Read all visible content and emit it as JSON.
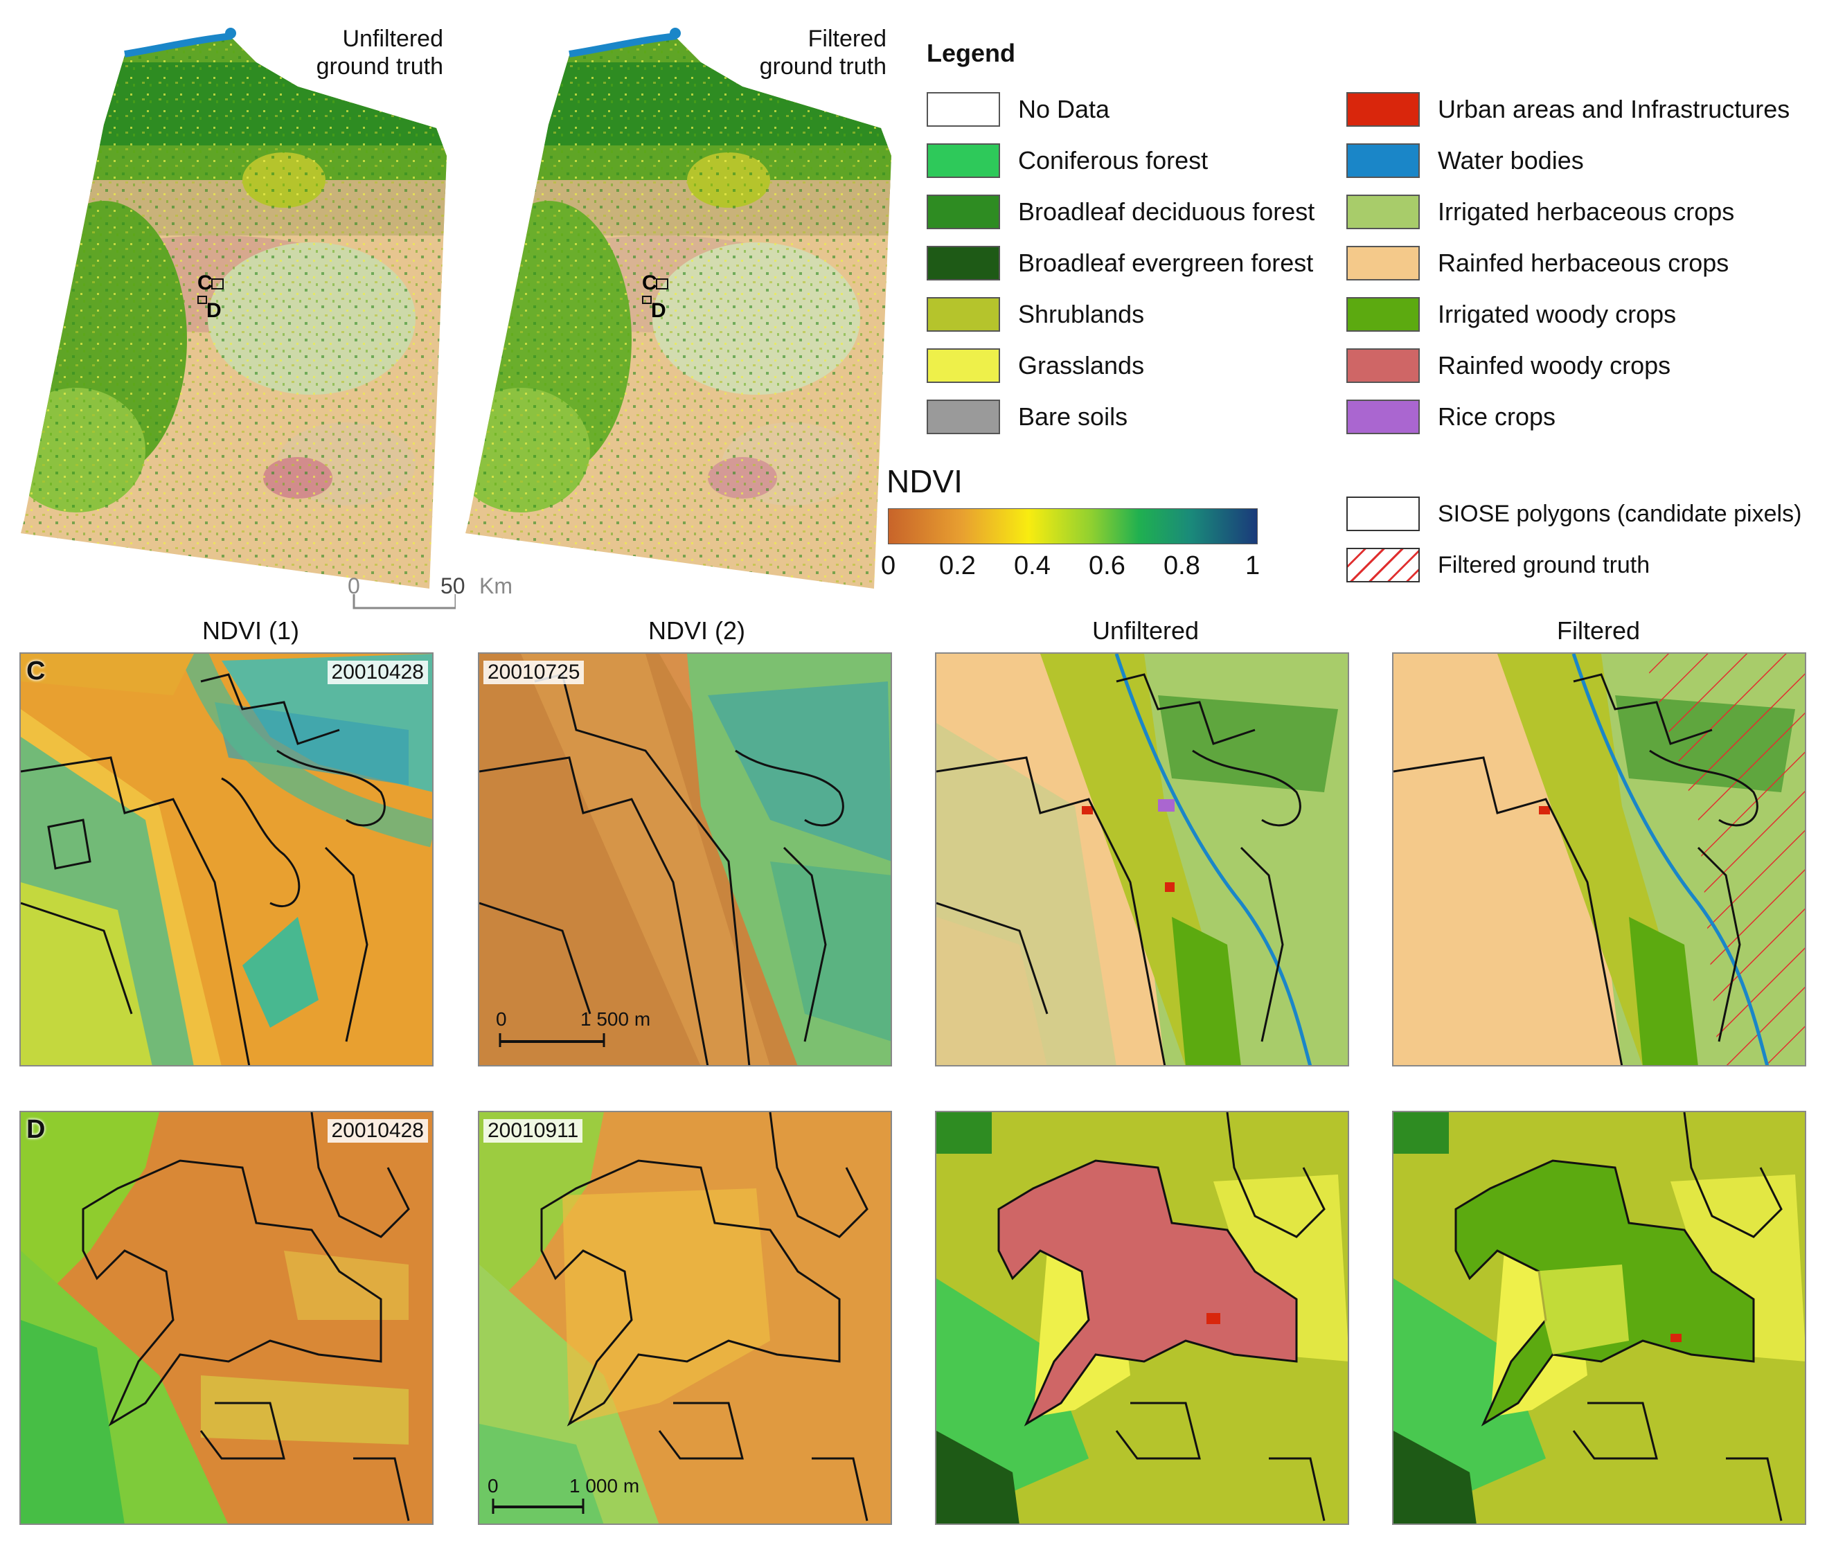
{
  "overview": {
    "unfiltered_title_l1": "Unfiltered",
    "unfiltered_title_l2": "ground truth",
    "filtered_title_l1": "Filtered",
    "filtered_title_l2": "ground truth",
    "marker_c": "C",
    "marker_d": "D",
    "scale_zero": "0",
    "scale_fifty": "50",
    "scale_unit": "Km"
  },
  "legend": {
    "title": "Legend",
    "left": [
      {
        "label": "No Data",
        "color": "#ffffff"
      },
      {
        "label": "Coniferous forest",
        "color": "#2ec95a"
      },
      {
        "label": "Broadleaf deciduous forest",
        "color": "#2e8c22"
      },
      {
        "label": "Broadleaf evergreen forest",
        "color": "#1e5a16"
      },
      {
        "label": "Shrublands",
        "color": "#b5c42c"
      },
      {
        "label": "Grasslands",
        "color": "#eef04a"
      },
      {
        "label": "Bare soils",
        "color": "#9a9a9a"
      }
    ],
    "right": [
      {
        "label": "Urban areas and Infrastructures",
        "color": "#d9260c"
      },
      {
        "label": "Water bodies",
        "color": "#1a86c8"
      },
      {
        "label": "Irrigated herbaceous crops",
        "color": "#a8cc6a"
      },
      {
        "label": "Rainfed herbaceous crops",
        "color": "#f4c98a"
      },
      {
        "label": "Irrigated woody crops",
        "color": "#5caa10"
      },
      {
        "label": "Rainfed woody crops",
        "color": "#cf6666"
      },
      {
        "label": "Rice crops",
        "color": "#aa66d0"
      }
    ],
    "siose_label": "SIOSE polygons (candidate pixels)",
    "filtered_gt_label": "Filtered ground truth"
  },
  "ndvi": {
    "title": "NDVI",
    "ticks": [
      "0",
      "0.2",
      "0.4",
      "0.6",
      "0.8",
      "1"
    ],
    "colors": [
      "#c8642a",
      "#e8a030",
      "#f8ec10",
      "#90d030",
      "#20b050",
      "#1a8a7a",
      "#1a3a7a"
    ]
  },
  "columns": [
    "NDVI (1)",
    "NDVI (2)",
    "Unfiltered",
    "Filtered"
  ],
  "rows": {
    "c": {
      "letter": "C",
      "date1": "20010428",
      "date2": "20010725",
      "scale_zero": "0",
      "scale_label": "1 500 m"
    },
    "d": {
      "letter": "D",
      "date1": "20010428",
      "date2": "20010911",
      "scale_zero": "0",
      "scale_label": "1 000 m"
    }
  }
}
